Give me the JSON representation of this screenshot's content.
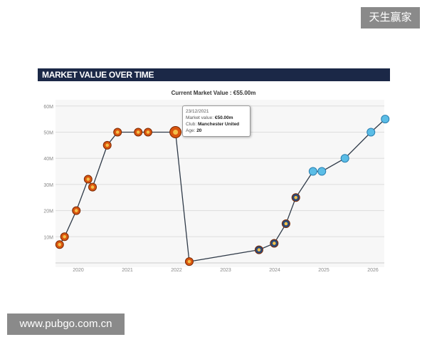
{
  "watermarks": {
    "top": "天生赢家",
    "bottom": "www.pubgo.com.cn"
  },
  "panel": {
    "title": "MARKET VALUE OVER TIME"
  },
  "tooltip": {
    "date": "23/12/2021",
    "mv_label": "Market value:",
    "mv": "€50.00m",
    "club_label": "Club:",
    "club": "Manchester United",
    "age_label": "Age:",
    "age": "20"
  },
  "chart_data": {
    "type": "line",
    "title": "Current Market Value : €55.00m",
    "xlabel": "",
    "ylabel": "",
    "xlim": [
      2019.6,
      2026.25
    ],
    "ylim": [
      0,
      60
    ],
    "grid": true,
    "x_ticks": [
      "2020",
      "2021",
      "2022",
      "2023",
      "2024",
      "2025",
      "2026"
    ],
    "y_ticks": [
      "10M",
      "20M",
      "30M",
      "40M",
      "50M",
      "60M"
    ],
    "colors": {
      "line": "#2f3a48",
      "club1": "#d9550f",
      "club2": "#2b4a7a",
      "club3": "#5bbde6",
      "header": "#1b2847"
    },
    "series": [
      {
        "club": "Manchester United",
        "marker": "club1",
        "points": [
          [
            2019.62,
            7
          ],
          [
            2019.72,
            10
          ],
          [
            2019.96,
            20
          ],
          [
            2020.2,
            32
          ],
          [
            2020.29,
            29
          ],
          [
            2020.59,
            45
          ],
          [
            2020.8,
            50
          ],
          [
            2021.22,
            50
          ],
          [
            2021.42,
            50
          ],
          [
            2021.98,
            50
          ],
          [
            2022.26,
            0.5
          ]
        ]
      },
      {
        "marker": "club2",
        "points": [
          [
            2023.68,
            5
          ],
          [
            2023.99,
            7.5
          ],
          [
            2024.23,
            15
          ],
          [
            2024.43,
            25
          ]
        ]
      },
      {
        "marker": "club3",
        "points": [
          [
            2024.78,
            35
          ],
          [
            2024.96,
            35
          ],
          [
            2025.43,
            40
          ],
          [
            2025.96,
            50
          ],
          [
            2026.25,
            55
          ]
        ]
      }
    ]
  }
}
